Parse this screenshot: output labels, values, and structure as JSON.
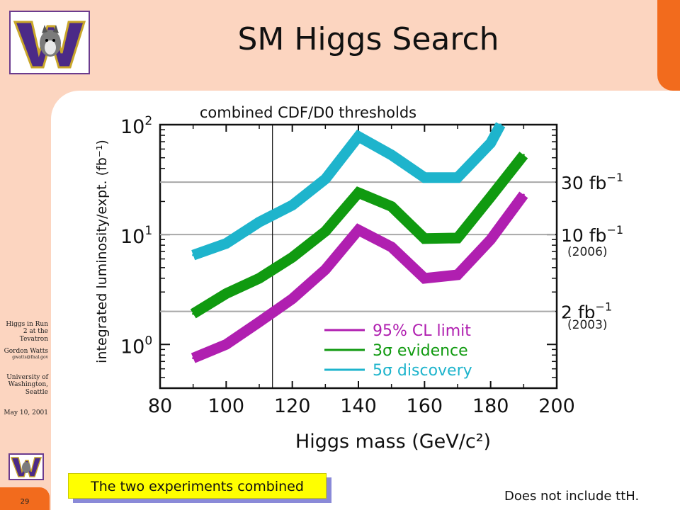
{
  "slide": {
    "title": "SM Higgs Search",
    "sidebar": {
      "talk_title": "Higgs in Run 2 at the Tevatron",
      "author": "Gordon Watts",
      "email": "gwatts@fnal.gov",
      "affiliation": "University of Washington, Seattle",
      "date": "May 10, 2001"
    },
    "page_number": "29",
    "caption": "The two experiments combined",
    "note": "Does not include ttH.",
    "logo_icon": "uw-husky-w-logo",
    "colors": {
      "background": "#fcd5c0",
      "accent": "#f26b1d",
      "caption": "#ffff00"
    }
  },
  "chart_data": {
    "type": "line",
    "title": "combined CDF/D0 thresholds",
    "xlabel": "Higgs mass (GeV/c²)",
    "ylabel": "integrated luminosity/expt. (fb⁻¹)",
    "y_scale": "log",
    "xlim": [
      80,
      200
    ],
    "ylim": [
      0.4,
      100
    ],
    "x_ticks": [
      "80",
      "100",
      "120",
      "140",
      "160",
      "180",
      "200"
    ],
    "y_tick_base": "10",
    "y_ticks": [
      {
        "value": 1,
        "exp": "0"
      },
      {
        "value": 10,
        "exp": "1"
      },
      {
        "value": 100,
        "exp": "2"
      }
    ],
    "x_marker_line": 114,
    "reference_lines": [
      {
        "value": 30,
        "label": "30 fb",
        "sup": "−1",
        "year": ""
      },
      {
        "value": 10,
        "label": "10 fb",
        "sup": "−1",
        "year": "(2006)"
      },
      {
        "value": 2,
        "label": "2 fb",
        "sup": "−1",
        "year": "(2003)"
      }
    ],
    "series": [
      {
        "name": "95% CL limit",
        "color": "#b01fb0",
        "x": [
          90,
          100,
          110,
          120,
          130,
          140,
          150,
          160,
          170,
          180,
          190
        ],
        "y": [
          0.75,
          1.0,
          1.6,
          2.6,
          4.8,
          11,
          7.7,
          4.0,
          4.3,
          9.0,
          23
        ]
      },
      {
        "name": "3σ evidence",
        "color": "#109a10",
        "x": [
          90,
          100,
          110,
          120,
          130,
          140,
          150,
          160,
          170,
          180,
          190
        ],
        "y": [
          1.9,
          2.9,
          4.0,
          6.2,
          10.7,
          24,
          18,
          9.2,
          9.3,
          22,
          53
        ]
      },
      {
        "name": "5σ discovery",
        "color": "#1eb4cc",
        "x": [
          90,
          100,
          110,
          120,
          130,
          140,
          150,
          160,
          170,
          180,
          183
        ],
        "y": [
          6.5,
          8.3,
          13,
          18.5,
          32,
          78,
          53,
          33,
          33,
          68,
          100
        ]
      }
    ],
    "legend_position": "bottom-right",
    "grid": false
  }
}
